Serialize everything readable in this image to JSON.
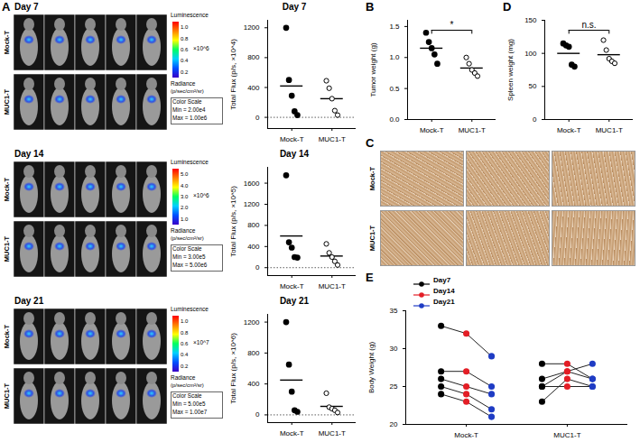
{
  "panels": [
    "A",
    "B",
    "C",
    "D",
    "E"
  ],
  "image_panels": {
    "bioluminescence": [
      {
        "rows": [
          "Mock-T",
          "MUC1-T"
        ],
        "colorbar": {
          "title": "Luminescence",
          "multiplier": "×10^6",
          "ticks": [
            "1.0",
            "0.8",
            "0.6",
            "0.4",
            "0.2"
          ],
          "unit_title": "Radiance",
          "unit": "(p/sec/cm²/sr)",
          "scale_box": [
            "Color Scale",
            "Min = 2.00e4",
            "Max = 1.00e6"
          ]
        }
      },
      {
        "rows": [
          "Mock-T",
          "MUC1-T"
        ],
        "colorbar": {
          "title": "Luminescence",
          "multiplier": "×10^6",
          "ticks": [
            "5.0",
            "4.0",
            "3.0",
            "2.0",
            "1.0"
          ],
          "unit_title": "Radiance",
          "unit": "(p/sec/cm²/sr)",
          "scale_box": [
            "Color Scale",
            "Min = 3.00e5",
            "Max = 5.00e6"
          ]
        }
      },
      {
        "rows": [
          "Mock-T",
          "MUC1-T"
        ],
        "colorbar": {
          "title": "Luminescence",
          "multiplier": "×10^7",
          "ticks": [
            "1.0",
            "0.8",
            "0.6",
            "0.4",
            "0.2"
          ],
          "unit_title": "Radiance",
          "unit": "(p/sec/cm²/sr)",
          "scale_box": [
            "Color Scale",
            "Min = 5.00e5",
            "Max = 1.00e7"
          ]
        }
      }
    ],
    "histology": {
      "rows": [
        "Mock-T",
        "MUC1-T"
      ]
    }
  },
  "chart_data": [
    {
      "type": "scatter",
      "title": "Day 7",
      "ylabel": "Total Flux (p/s, ×10^4)",
      "ylim": [
        -150,
        1300
      ],
      "yticks": [
        0,
        400,
        800,
        1200
      ],
      "reference_line": 0,
      "series": [
        {
          "name": "Mock-T",
          "marker": "filled",
          "values": [
            1200,
            500,
            290,
            80,
            30
          ],
          "mean": 420
        },
        {
          "name": "MUC1-T",
          "marker": "open",
          "values": [
            490,
            390,
            250,
            90,
            30
          ],
          "mean": 250
        }
      ]
    },
    {
      "type": "scatter",
      "title": "Day 14",
      "ylabel": "Total Flux (p/s, ×10^5)",
      "ylim": [
        -150,
        1900
      ],
      "yticks": [
        0,
        400,
        800,
        1200,
        1600
      ],
      "reference_line": 0,
      "series": [
        {
          "name": "Mock-T",
          "marker": "filled",
          "values": [
            1750,
            480,
            380,
            200,
            190
          ],
          "mean": 600
        },
        {
          "name": "MUC1-T",
          "marker": "open",
          "values": [
            450,
            280,
            200,
            120,
            50
          ],
          "mean": 220
        }
      ]
    },
    {
      "type": "scatter",
      "title": "Day 21",
      "ylabel": "Total Flux (p/s, ×10^6)",
      "ylim": [
        -100,
        1300
      ],
      "yticks": [
        0,
        400,
        800,
        1200
      ],
      "reference_line": 0,
      "series": [
        {
          "name": "Mock-T",
          "marker": "filled",
          "values": [
            1200,
            650,
            300,
            60,
            40
          ],
          "mean": 450
        },
        {
          "name": "MUC1-T",
          "marker": "open",
          "values": [
            280,
            100,
            80,
            60,
            30
          ],
          "mean": 110
        }
      ]
    },
    {
      "type": "scatter",
      "ylabel": "Tumor weight (g)",
      "ylim": [
        0,
        1.6
      ],
      "yticks": [
        {
          "value": 0,
          "label": "0.0"
        },
        0.5,
        {
          "value": 1,
          "label": "1.0"
        },
        1.5
      ],
      "significance": "*",
      "series": [
        {
          "name": "Mock-T",
          "marker": "filled",
          "values": [
            1.4,
            1.25,
            1.15,
            1.05,
            0.9
          ],
          "mean": 1.15
        },
        {
          "name": "MUC1-T",
          "marker": "open",
          "values": [
            1.0,
            0.9,
            0.8,
            0.75,
            0.7
          ],
          "mean": 0.83
        }
      ]
    },
    {
      "type": "scatter",
      "ylabel": "Spleen weight (mg)",
      "ylim": [
        0,
        150
      ],
      "yticks": [
        0,
        50,
        100,
        150
      ],
      "significance": "n.s.",
      "series": [
        {
          "name": "Mock-T",
          "marker": "filled",
          "values": [
            115,
            112,
            110,
            83,
            80
          ],
          "mean": 100
        },
        {
          "name": "MUC1-T",
          "marker": "open",
          "values": [
            120,
            105,
            92,
            88,
            85
          ],
          "mean": 98
        }
      ]
    },
    {
      "type": "line",
      "ylabel": "Body Weight (g)",
      "categories": [
        "Mock-T",
        "MUC1-T"
      ],
      "ylim": [
        20,
        35
      ],
      "yticks": [
        20,
        25,
        30,
        35
      ],
      "legend": "top-left",
      "marker": "circle",
      "series": [
        {
          "name": "Day7",
          "color": "#000000",
          "values": [
            [
              33,
              27,
              26,
              25,
              24
            ],
            [
              28,
              26,
              25,
              25,
              23
            ]
          ]
        },
        {
          "name": "Day14",
          "color": "#e31e26",
          "values": [
            [
              32,
              27,
              25,
              24,
              23
            ],
            [
              28,
              27,
              27,
              25,
              26
            ]
          ]
        },
        {
          "name": "Day21",
          "color": "#1f3cc4",
          "values": [
            [
              29,
              25,
              24,
              22,
              21
            ],
            [
              26,
              28,
              26,
              25,
              25
            ]
          ]
        }
      ]
    }
  ]
}
